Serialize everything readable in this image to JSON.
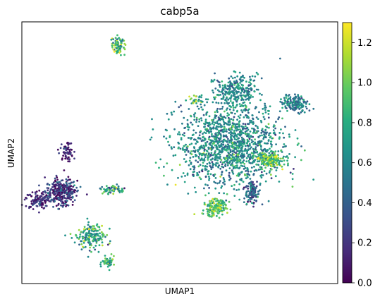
{
  "chart_data": {
    "type": "scatter",
    "title": "cabp5a",
    "xlabel": "UMAP1",
    "ylabel": "UMAP2",
    "colormap": "viridis",
    "color_range": [
      0.0,
      1.3
    ],
    "colorbar_ticks": [
      "0.0",
      "0.2",
      "0.4",
      "0.6",
      "0.8",
      "1.0",
      "1.2"
    ],
    "colorbar_tick_values": [
      0.0,
      0.2,
      0.4,
      0.6,
      0.8,
      1.0,
      1.2
    ],
    "xlim": [
      0,
      100
    ],
    "ylim": [
      0,
      100
    ],
    "grid": false,
    "axis_ticks_shown": false,
    "clusters": [
      {
        "cx": 12.5,
        "cy": 35.0,
        "rx": 4.5,
        "ry": 4.5,
        "n": 320,
        "mean": 0.22,
        "sd": 0.18
      },
      {
        "cx": 14.0,
        "cy": 51.0,
        "rx": 2.0,
        "ry": 3.5,
        "n": 60,
        "mean": 0.12,
        "sd": 0.1
      },
      {
        "cx": 5.5,
        "cy": 32.0,
        "rx": 4.0,
        "ry": 3.0,
        "n": 120,
        "mean": 0.15,
        "sd": 0.12
      },
      {
        "cx": 30.5,
        "cy": 91.0,
        "rx": 1.8,
        "ry": 3.0,
        "n": 80,
        "mean": 0.8,
        "sd": 0.25
      },
      {
        "cx": 28.5,
        "cy": 36.0,
        "rx": 3.5,
        "ry": 1.5,
        "n": 60,
        "mean": 0.75,
        "sd": 0.25
      },
      {
        "cx": 22.0,
        "cy": 18.0,
        "rx": 4.0,
        "ry": 4.5,
        "n": 180,
        "mean": 0.75,
        "sd": 0.2
      },
      {
        "cx": 27.5,
        "cy": 8.0,
        "rx": 1.8,
        "ry": 2.0,
        "n": 50,
        "mean": 0.8,
        "sd": 0.2
      },
      {
        "cx": 66.0,
        "cy": 53.0,
        "rx": 15.0,
        "ry": 14.0,
        "n": 1400,
        "mean": 0.62,
        "sd": 0.18
      },
      {
        "cx": 68.0,
        "cy": 74.0,
        "rx": 6.0,
        "ry": 5.0,
        "n": 250,
        "mean": 0.6,
        "sd": 0.15
      },
      {
        "cx": 86.5,
        "cy": 69.0,
        "rx": 3.5,
        "ry": 3.0,
        "n": 160,
        "mean": 0.55,
        "sd": 0.15
      },
      {
        "cx": 61.0,
        "cy": 29.0,
        "rx": 3.5,
        "ry": 3.0,
        "n": 170,
        "mean": 0.95,
        "sd": 0.15
      },
      {
        "cx": 73.0,
        "cy": 35.0,
        "rx": 2.0,
        "ry": 4.0,
        "n": 120,
        "mean": 0.4,
        "sd": 0.2
      },
      {
        "cx": 79.0,
        "cy": 47.0,
        "rx": 3.5,
        "ry": 2.5,
        "n": 160,
        "mean": 0.95,
        "sd": 0.2
      },
      {
        "cx": 55.0,
        "cy": 70.0,
        "rx": 2.0,
        "ry": 2.0,
        "n": 30,
        "mean": 0.85,
        "sd": 0.2
      }
    ]
  }
}
